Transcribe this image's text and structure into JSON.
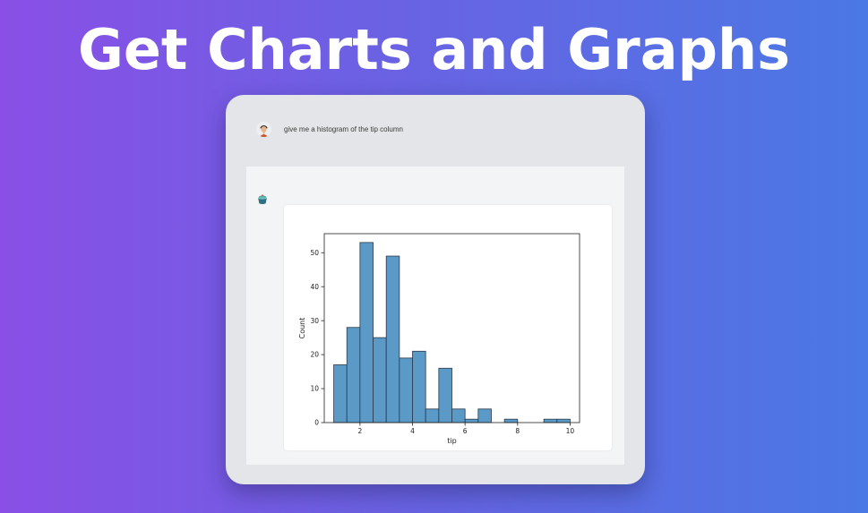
{
  "headline": "Get Charts and Graphs",
  "chat": {
    "user_message": "give me a histogram of the tip column",
    "user_avatar_icon": "user-avatar",
    "assistant_icon": "bot-cup-icon"
  },
  "colors": {
    "bar_fill": "#5b9ac6",
    "bar_stroke": "#2b3a4a"
  },
  "chart_data": {
    "type": "bar",
    "subtype": "histogram",
    "xlabel": "tip",
    "ylabel": "Count",
    "xlim": [
      0.64,
      10.36
    ],
    "ylim": [
      0,
      55.6
    ],
    "x_ticks": [
      2,
      4,
      6,
      8,
      10
    ],
    "y_ticks": [
      0,
      10,
      20,
      30,
      40,
      50
    ],
    "bin_edges": [
      1.0,
      1.5,
      2.0,
      2.5,
      3.0,
      3.5,
      4.0,
      4.5,
      5.0,
      5.5,
      6.0,
      6.5,
      7.0,
      7.5,
      8.0,
      8.5,
      9.0,
      9.5,
      10.0
    ],
    "values": [
      17,
      28,
      53,
      25,
      49,
      19,
      21,
      4,
      16,
      4,
      1,
      4,
      0,
      1,
      0,
      0,
      1,
      1
    ],
    "grid": false
  }
}
